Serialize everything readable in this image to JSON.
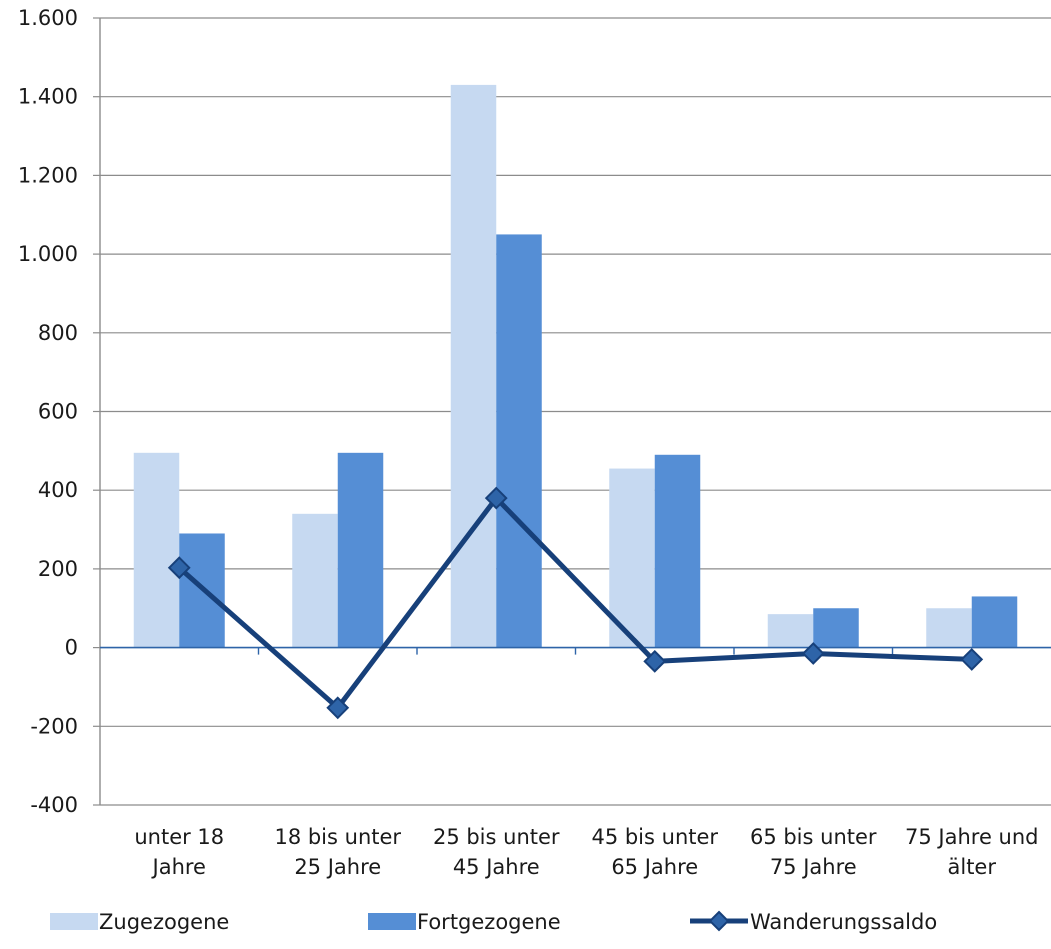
{
  "chart_data": {
    "type": "bar",
    "categories": [
      [
        "unter 18",
        "Jahre"
      ],
      [
        "18 bis unter",
        "25 Jahre"
      ],
      [
        "25 bis unter",
        "45 Jahre"
      ],
      [
        "45 bis unter",
        "65 Jahre"
      ],
      [
        "65 bis unter",
        "75 Jahre"
      ],
      [
        "75 Jahre und",
        "älter"
      ]
    ],
    "series": [
      {
        "name": "Zugezogene",
        "kind": "bar",
        "color": "#c6d9f1",
        "values": [
          495,
          340,
          1430,
          455,
          85,
          100
        ]
      },
      {
        "name": "Fortgezogene",
        "kind": "bar",
        "color": "#558ed5",
        "values": [
          290,
          495,
          1050,
          490,
          100,
          130
        ]
      },
      {
        "name": "Wanderungssaldo",
        "kind": "line",
        "marker": "diamond",
        "color": "#17407a",
        "values": [
          203,
          -153,
          380,
          -35,
          -15,
          -30
        ]
      }
    ],
    "ylim": [
      -400,
      1600
    ],
    "yticks": [
      -400,
      -200,
      0,
      200,
      400,
      600,
      800,
      1000,
      1200,
      1400,
      1600
    ],
    "ytick_labels": [
      "-400",
      "-200",
      "0",
      "200",
      "400",
      "600",
      "800",
      "1.000",
      "1.200",
      "1.400",
      "1.600"
    ],
    "grid": true,
    "legend": "bottom",
    "title": "",
    "xlabel": "",
    "ylabel": ""
  }
}
